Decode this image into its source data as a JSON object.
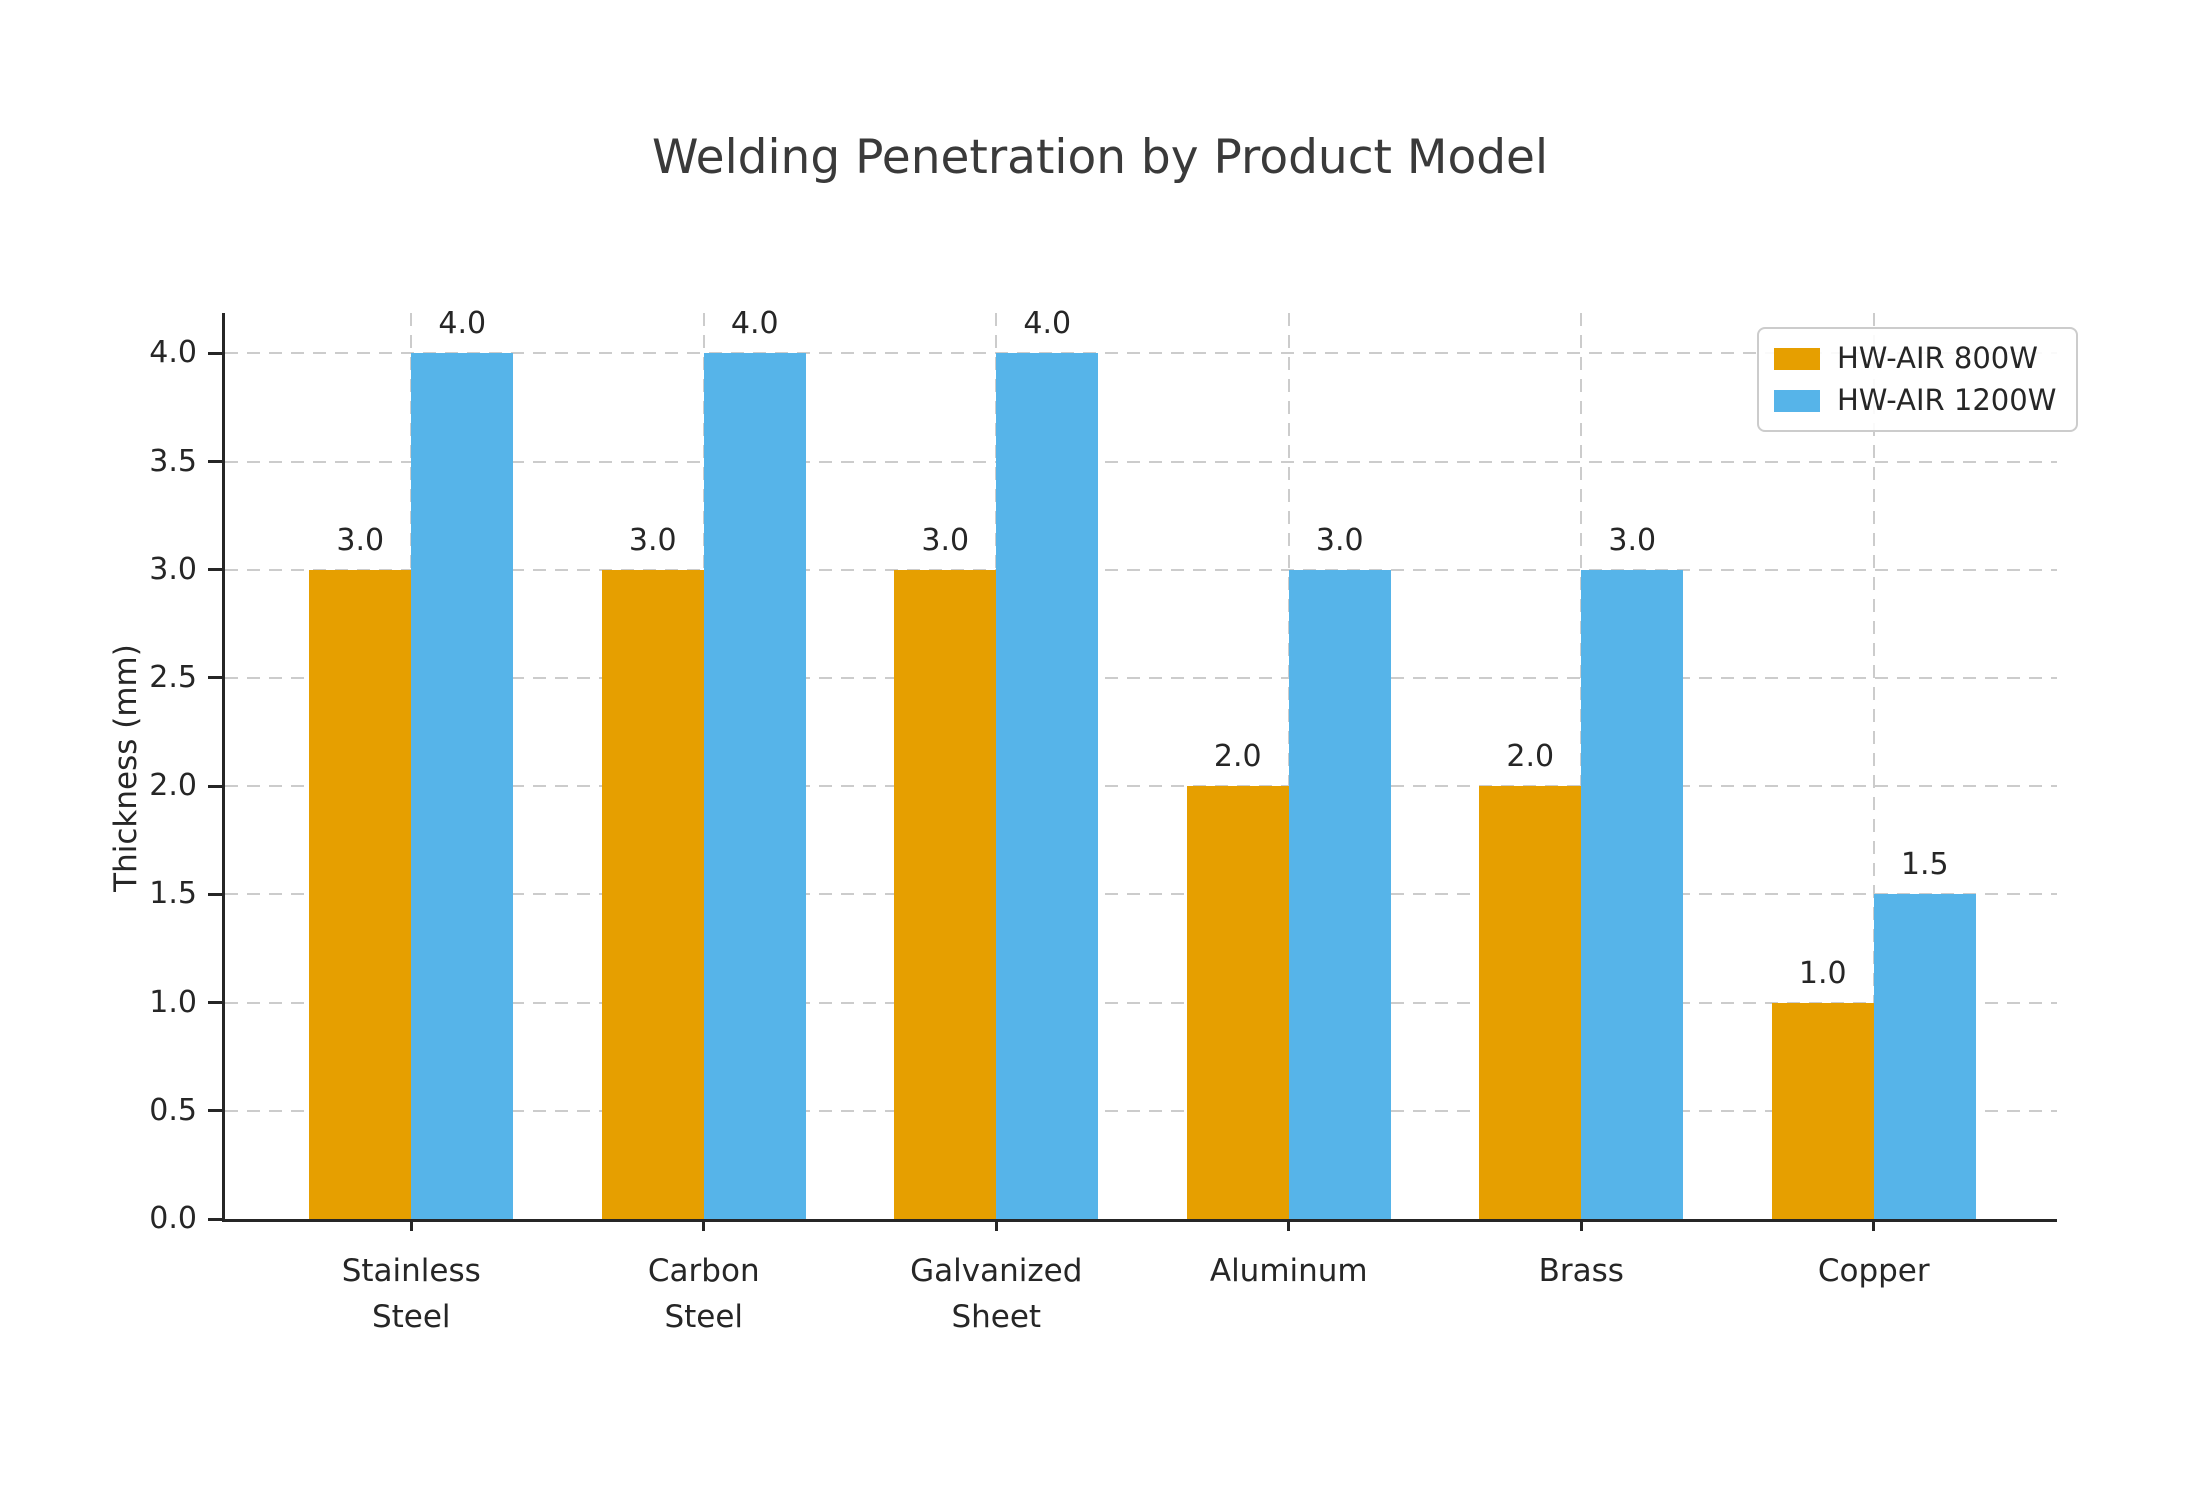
{
  "chart_data": {
    "type": "bar",
    "title": "Welding Penetration by Product Model",
    "ylabel": "Thickness (mm)",
    "xlabel": "",
    "categories": [
      "Stainless Steel",
      "Carbon Steel",
      "Galvanized Sheet",
      "Aluminum",
      "Brass",
      "Copper"
    ],
    "category_label_lines": [
      [
        "Stainless",
        "Steel"
      ],
      [
        "Carbon",
        "Steel"
      ],
      [
        "Galvanized",
        "Sheet"
      ],
      [
        "Aluminum"
      ],
      [
        "Brass"
      ],
      [
        "Copper"
      ]
    ],
    "series": [
      {
        "name": "HW-AIR 800W",
        "color": "#E69F00",
        "values": [
          3.0,
          3.0,
          3.0,
          2.0,
          2.0,
          1.0
        ]
      },
      {
        "name": "HW-AIR 1200W",
        "color": "#56B4E9",
        "values": [
          4.0,
          4.0,
          4.0,
          3.0,
          3.0,
          1.5
        ]
      }
    ],
    "bar_value_labels": [
      [
        "3.0",
        "3.0",
        "3.0",
        "2.0",
        "2.0",
        "1.0"
      ],
      [
        "4.0",
        "4.0",
        "4.0",
        "3.0",
        "3.0",
        "1.5"
      ]
    ],
    "ytick_values": [
      0,
      0.5,
      1,
      1.5,
      2,
      2.5,
      3,
      3.5,
      4
    ],
    "ytick_labels": [
      "0.0",
      "0.5",
      "1.0",
      "1.5",
      "2.0",
      "2.5",
      "3.0",
      "3.5",
      "4.0"
    ],
    "ylim": [
      0,
      4.2
    ],
    "grid": "dashed-both-axes",
    "legend_position": "upper right",
    "colors": {
      "axis": "#262626",
      "grid": "#cccccc",
      "text": "#262626",
      "title": "#3a3a3a",
      "background": "#ffffff"
    }
  }
}
